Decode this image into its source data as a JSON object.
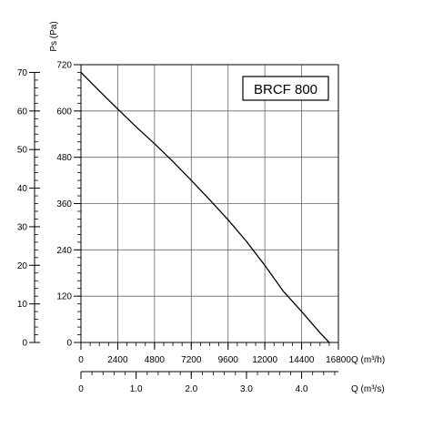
{
  "chart_data": {
    "type": "line",
    "title": "BRCF 800",
    "ylabel": "Ps (Pa)",
    "xlabel_primary": "Q (m³/h)",
    "xlabel_secondary": "Q (m³/s)",
    "x_primary": {
      "range": [
        0,
        16800
      ],
      "ticks": [
        0,
        2400,
        4800,
        7200,
        9600,
        12000,
        14400,
        16800
      ],
      "tick_labels": [
        "0",
        "2400",
        "4800",
        "7200",
        "9600",
        "12000",
        "14400",
        "16800"
      ]
    },
    "x_secondary": {
      "range": [
        0,
        4.6667
      ],
      "ticks": [
        0,
        1.0,
        2.0,
        3.0,
        4.0
      ],
      "tick_labels": [
        "0",
        "1.0",
        "2.0",
        "3.0",
        "4.0"
      ]
    },
    "y_inner": {
      "range": [
        0,
        720
      ],
      "ticks": [
        0,
        120,
        240,
        360,
        480,
        600,
        720
      ],
      "tick_labels": [
        "0",
        "120",
        "240",
        "360",
        "480",
        "600",
        "720"
      ]
    },
    "y_outer": {
      "range": [
        0,
        72
      ],
      "ticks": [
        0,
        10,
        20,
        30,
        40,
        50,
        60,
        70
      ],
      "tick_labels": [
        "0",
        "10",
        "20",
        "30",
        "40",
        "50",
        "60",
        "70"
      ]
    },
    "grid": true,
    "series": [
      {
        "x": [
          0,
          1200,
          2400,
          3600,
          4800,
          6000,
          7200,
          8400,
          9600,
          10800,
          12000,
          13200,
          14400,
          15600,
          16200
        ],
        "y": [
          700,
          652,
          605,
          559,
          515,
          469,
          420,
          370,
          318,
          262,
          200,
          133,
          80,
          25,
          0
        ]
      }
    ],
    "colors": {
      "line": "#000000",
      "grid": "#666666",
      "axis": "#000000"
    }
  }
}
